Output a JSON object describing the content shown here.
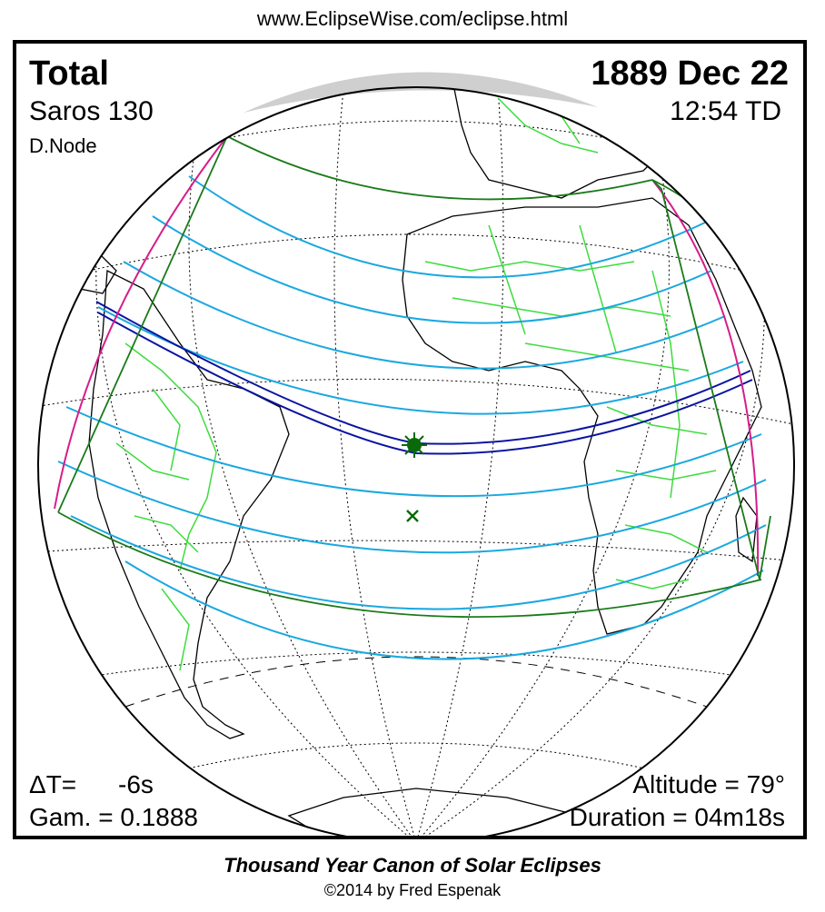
{
  "header": {
    "url": "www.EclipseWise.com/eclipse.html"
  },
  "eclipse": {
    "type": "Total",
    "saros": "Saros 130",
    "node": "D.Node",
    "date": "1889 Dec 22",
    "time": "12:54 TD",
    "delta_t_label": "ΔT=",
    "delta_t_value": "-6s",
    "gamma": "Gam. = 0.1888",
    "altitude": "Altitude = 79°",
    "duration": "Duration = 04m18s"
  },
  "footer": {
    "canon_title": "Thousand Year Canon of Solar Eclipses",
    "copyright": "©2014 by Fred Espenak"
  },
  "map_legend": {
    "colors": {
      "central_path": "#0a14a0",
      "penumbral_limits": "#1a7a1a",
      "obscuration_curves": "#1aa8e0",
      "rise_set_curves": "#d61d8a",
      "borders": "#3ddc3d",
      "graticule": "#000000"
    },
    "markers": [
      "greatest-eclipse-star",
      "subsolar-cross"
    ]
  }
}
